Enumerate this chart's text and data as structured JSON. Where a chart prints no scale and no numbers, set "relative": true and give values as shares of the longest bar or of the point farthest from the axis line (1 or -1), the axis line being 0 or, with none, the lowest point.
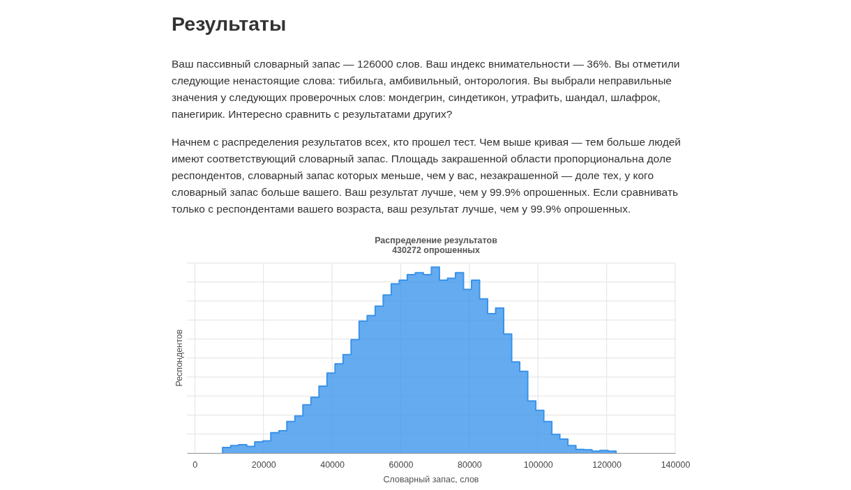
{
  "chart_data": {
    "type": "area",
    "title": "Распределение результатов",
    "subtitle": "430272 опрошенных",
    "xlabel": "Словарный запас, слов",
    "ylabel": "Респондентов",
    "annotations": [
      "Результаты",
      "Ваш пассивный словарный запас — 126000 слов. Ваш индекс внимательности — 36%. Вы отметили следующие ненастоящие слова: тибильга, амбивильный, онторология. Вы выбрали неправильные значения у следующих проверочных слов: мондегрин, синдетикон, утрафить, шандал, шлафрок, панегирик. Интересно сравнить с результатами других?",
      "Начнем с распределения результатов всех, кто прошел тест. Чем выше кривая — тем больше людей имеют соответствующий словарный запас. Площадь закрашенной области пропорциональна доле респондентов, словарный запас которых меньше, чем у вас, незакрашенной — доле тех, у кого словарный запас больше вашего. Ваш результат лучше, чем у 99.9% опрошенных. Если сравнивать только с респондентами вашего возраста, ваш результат лучше, чем у 99.9% опрошенных."
    ],
    "x": [
      8100,
      10440,
      12780,
      15120,
      17460,
      19800,
      22140,
      24480,
      26820,
      29160,
      31500,
      33840,
      36180,
      38520,
      40860,
      43200,
      45540,
      47880,
      50220,
      52560,
      54900,
      57240,
      59580,
      61920,
      64260,
      66600,
      68940,
      71280,
      73620,
      75960,
      78300,
      80640,
      82980,
      85320,
      87660,
      90000,
      92340,
      94680,
      97020,
      99360,
      101700,
      104040,
      106380,
      108720,
      111060,
      113400,
      115740,
      118080,
      120420,
      122760
    ],
    "values": [
      0.03,
      0.04,
      0.045,
      0.036,
      0.06,
      0.066,
      0.11,
      0.12,
      0.17,
      0.2,
      0.26,
      0.3,
      0.36,
      0.43,
      0.48,
      0.53,
      0.61,
      0.71,
      0.74,
      0.79,
      0.85,
      0.91,
      0.93,
      0.96,
      0.97,
      0.96,
      1,
      0.93,
      0.94,
      0.97,
      0.88,
      0.93,
      0.83,
      0.75,
      0.78,
      0.64,
      0.49,
      0.44,
      0.28,
      0.23,
      0.17,
      0.1,
      0.075,
      0.04,
      0.02,
      0.018,
      0.01,
      0.014,
      0.01,
      0
    ],
    "color": "#3a93ea",
    "relative": true,
    "xlim": [
      -2300,
      140000
    ],
    "xticks": [
      0,
      20000,
      40000,
      60000,
      80000,
      100000,
      120000,
      140000
    ],
    "grid": true
  }
}
